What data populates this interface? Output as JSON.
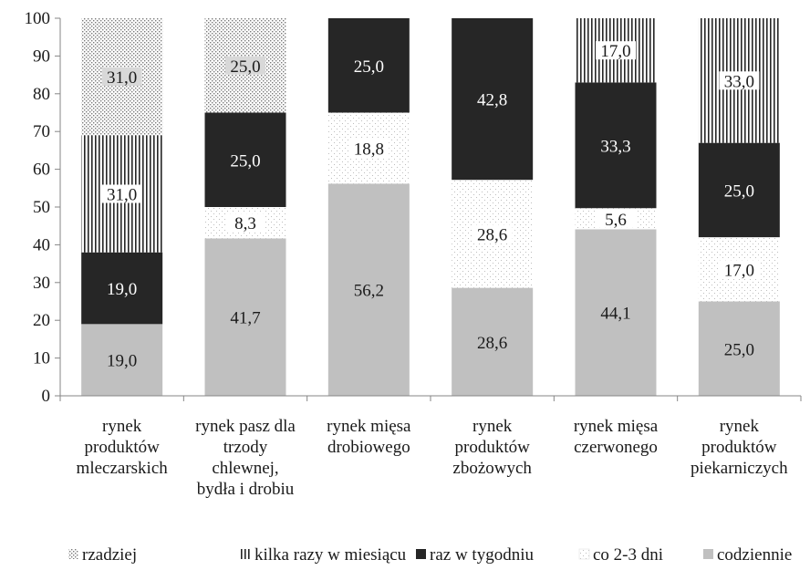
{
  "chart_data": {
    "type": "bar",
    "stacked": true,
    "categories": [
      [
        "rynek",
        "produktów",
        "mleczarskich"
      ],
      [
        "rynek pasz dla",
        "trzody",
        "chlewnej,",
        "bydła i drobiu"
      ],
      [
        "rynek mięsa",
        "drobiowego"
      ],
      [
        "rynek",
        "produktów",
        "zbożowych"
      ],
      [
        "rynek mięsa",
        "czerwonego"
      ],
      [
        "rynek",
        "produktów",
        "piekarniczych"
      ]
    ],
    "series": [
      {
        "name": "codziennie",
        "values": [
          19.0,
          41.7,
          56.2,
          28.6,
          44.1,
          25.0
        ],
        "labels": [
          "19,0",
          "41,7",
          "56,2",
          "28,6",
          "44,1",
          "25,0"
        ],
        "color": "#c0c0c0",
        "pattern": "solid"
      },
      {
        "name": "co 2-3 dni",
        "values": [
          0,
          8.3,
          18.8,
          28.6,
          5.6,
          17.0
        ],
        "labels": [
          "",
          "8,3",
          "18,8",
          "28,6",
          "5,6",
          "17,0"
        ],
        "color": "#ffffff",
        "pattern": "fine-dots"
      },
      {
        "name": "raz w tygodniu",
        "values": [
          19.0,
          25.0,
          25.0,
          42.8,
          33.3,
          25.0
        ],
        "labels": [
          "19,0",
          "25,0",
          "25,0",
          "42,8",
          "33,3",
          "25,0"
        ],
        "color": "#262626",
        "pattern": "solid"
      },
      {
        "name": "kilka razy w miesiącu",
        "values": [
          31.0,
          0,
          0,
          0,
          17.0,
          33.0
        ],
        "labels": [
          "31,0",
          "",
          "",
          "",
          "17,0",
          "33,0"
        ],
        "color": "#ffffff",
        "pattern": "vertical-lines"
      },
      {
        "name": "rzadziej",
        "values": [
          31.0,
          25.0,
          0,
          0,
          0,
          0
        ],
        "labels": [
          "31,0",
          "25,0",
          "",
          "",
          "",
          ""
        ],
        "color": "#d9d9d9",
        "pattern": "dots"
      }
    ],
    "legend_order": [
      "rzadziej",
      "kilka razy w miesiącu",
      "raz w tygodniu",
      "co 2-3 dni",
      "codziennie"
    ],
    "ylim": [
      0,
      100
    ],
    "yticks": [
      "0",
      "10",
      "20",
      "30",
      "40",
      "50",
      "60",
      "70",
      "80",
      "90",
      "100"
    ],
    "legend_position": "bottom",
    "grid": false
  }
}
